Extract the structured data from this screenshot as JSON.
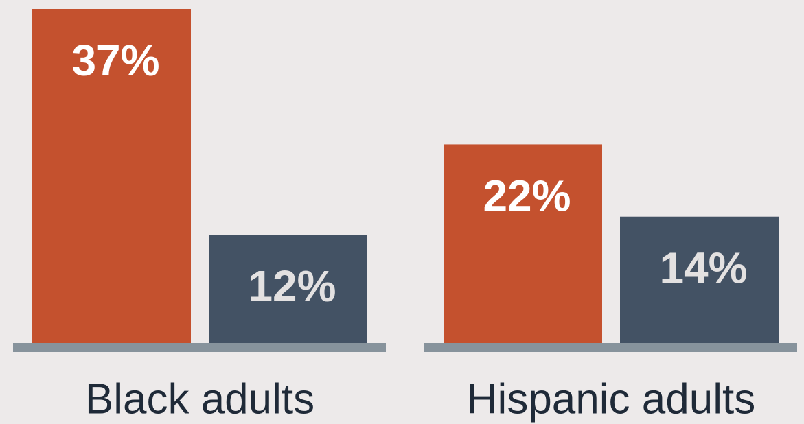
{
  "chart_data": {
    "type": "bar",
    "categories": [
      "Black adults",
      "Hispanic adults"
    ],
    "series": [
      {
        "color": "#c4512e",
        "label_color": "#ffffff",
        "values": [
          37,
          22
        ],
        "value_labels": [
          "37%",
          "22%"
        ]
      },
      {
        "color": "#435264",
        "label_color": "#e3e1e1",
        "values": [
          12,
          14
        ],
        "value_labels": [
          "12%",
          "14%"
        ]
      }
    ]
  }
}
